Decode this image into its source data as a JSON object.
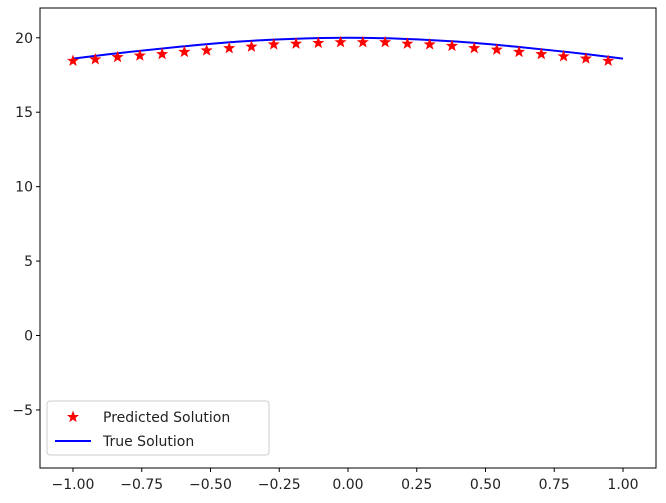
{
  "chart_data": {
    "type": "scatter",
    "title": "",
    "xlabel": "",
    "ylabel": "",
    "xlim": [
      -1.12,
      1.12
    ],
    "ylim": [
      -8.9,
      22.0
    ],
    "grid": false,
    "legend_position": "lower-left",
    "x_ticks": [
      -1.0,
      -0.75,
      -0.5,
      -0.25,
      0.0,
      0.25,
      0.5,
      0.75,
      1.0
    ],
    "x_tick_labels": [
      "−1.00",
      "−0.75",
      "−0.50",
      "−0.25",
      "0.00",
      "0.25",
      "0.50",
      "0.75",
      "1.00"
    ],
    "y_ticks": [
      -5,
      0,
      5,
      10,
      15,
      20
    ],
    "y_tick_labels": [
      "−5",
      "0",
      "5",
      "10",
      "15",
      "20"
    ],
    "series": [
      {
        "name": "Predicted Solution",
        "kind": "markers",
        "marker": "star",
        "color": "#ff0000",
        "x": [
          -1.0,
          -0.919,
          -0.838,
          -0.757,
          -0.676,
          -0.595,
          -0.514,
          -0.432,
          -0.351,
          -0.27,
          -0.189,
          -0.108,
          -0.027,
          0.054,
          0.135,
          0.216,
          0.297,
          0.378,
          0.459,
          0.541,
          0.622,
          0.703,
          0.784,
          0.865,
          0.946
        ],
        "y": [
          18.45,
          18.55,
          18.7,
          18.8,
          18.9,
          19.05,
          19.15,
          19.3,
          19.4,
          19.55,
          19.6,
          19.65,
          19.7,
          19.7,
          19.7,
          19.6,
          19.55,
          19.45,
          19.3,
          19.2,
          19.05,
          18.9,
          18.75,
          18.6,
          18.45
        ]
      },
      {
        "name": "True Solution",
        "kind": "line",
        "color": "#0000ff",
        "x": [
          -1.0,
          -0.8,
          -0.6,
          -0.4,
          -0.2,
          0.0,
          0.2,
          0.4,
          0.6,
          0.8,
          1.0
        ],
        "y": [
          18.6,
          19.04,
          19.42,
          19.74,
          19.93,
          20.0,
          19.93,
          19.74,
          19.42,
          19.04,
          18.6
        ]
      }
    ]
  }
}
